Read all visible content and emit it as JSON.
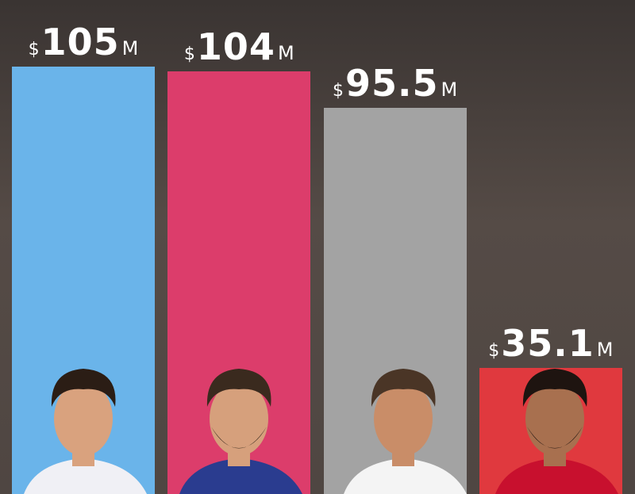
{
  "chart_data": {
    "type": "bar",
    "title": "",
    "xlabel": "",
    "ylabel": "",
    "ylim": [
      0,
      105
    ],
    "grid": false,
    "currency_symbol": "$",
    "unit_suffix": "M",
    "categories": [
      "",
      "",
      "",
      ""
    ],
    "values": [
      105,
      104,
      95.5,
      35.1
    ],
    "value_labels": [
      "105",
      "104",
      "95.5",
      "35.1"
    ],
    "colors": [
      "#6ab4ea",
      "#dc3d6b",
      "#a3a3a3",
      "#e0393e"
    ],
    "background_color": "#534a45"
  }
}
